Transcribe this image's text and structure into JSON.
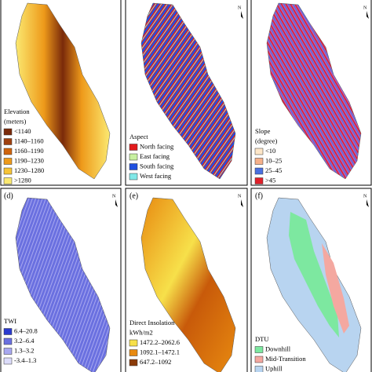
{
  "north_label": "N",
  "panels": [
    {
      "legend_title": [
        "Elevation",
        "(meters)"
      ],
      "items": [
        {
          "label": "<1140",
          "color": "#7a2a0a"
        },
        {
          "label": "1140–1160",
          "color": "#a0400e"
        },
        {
          "label": "1160–1190",
          "color": "#d0640c"
        },
        {
          "label": "1190–1230",
          "color": "#ee9a1a"
        },
        {
          "label": "1230–1280",
          "color": "#f7c436"
        },
        {
          "label": ">1280",
          "color": "#fbe971"
        }
      ]
    },
    {
      "legend_title": [
        "Aspect"
      ],
      "items": [
        {
          "label": "North facing",
          "color": "#e31a1c"
        },
        {
          "label": "East facing",
          "color": "#c8f0a0"
        },
        {
          "label": "South facing",
          "color": "#2050e0"
        },
        {
          "label": "West facing",
          "color": "#80e8e8"
        }
      ]
    },
    {
      "legend_title": [
        "Slope",
        "(degree)"
      ],
      "items": [
        {
          "label": "<10",
          "color": "#fde6c8"
        },
        {
          "label": "10–25",
          "color": "#f5b08a"
        },
        {
          "label": "25–45",
          "color": "#4a70e0"
        },
        {
          "label": ">45",
          "color": "#e0202a"
        }
      ]
    },
    {
      "label": "(d)",
      "legend_title": [
        "TWI"
      ],
      "items": [
        {
          "label": "6.4–20.8",
          "color": "#2a3ad0"
        },
        {
          "label": "3.2–6.4",
          "color": "#6a70e0"
        },
        {
          "label": "1.3–3.2",
          "color": "#a8a8f0"
        },
        {
          "label": "-3.4–1.3",
          "color": "#dcdcfa"
        }
      ]
    },
    {
      "label": "(e)",
      "legend_title": [
        "Direct Insolation",
        "kWh/m2"
      ],
      "items": [
        {
          "label": "1472.2–2062.6",
          "color": "#f7e04a"
        },
        {
          "label": "1092.1–1472.1",
          "color": "#e88a10"
        },
        {
          "label": "647.2–1092",
          "color": "#8a3a08"
        }
      ]
    },
    {
      "label": "(f)",
      "legend_title": [
        "DTU"
      ],
      "items": [
        {
          "label": "Downhill",
          "color": "#7de8a0"
        },
        {
          "label": "Mid-Transition",
          "color": "#f4a8a0"
        },
        {
          "label": "Uphill",
          "color": "#b8d4f0"
        }
      ]
    }
  ]
}
